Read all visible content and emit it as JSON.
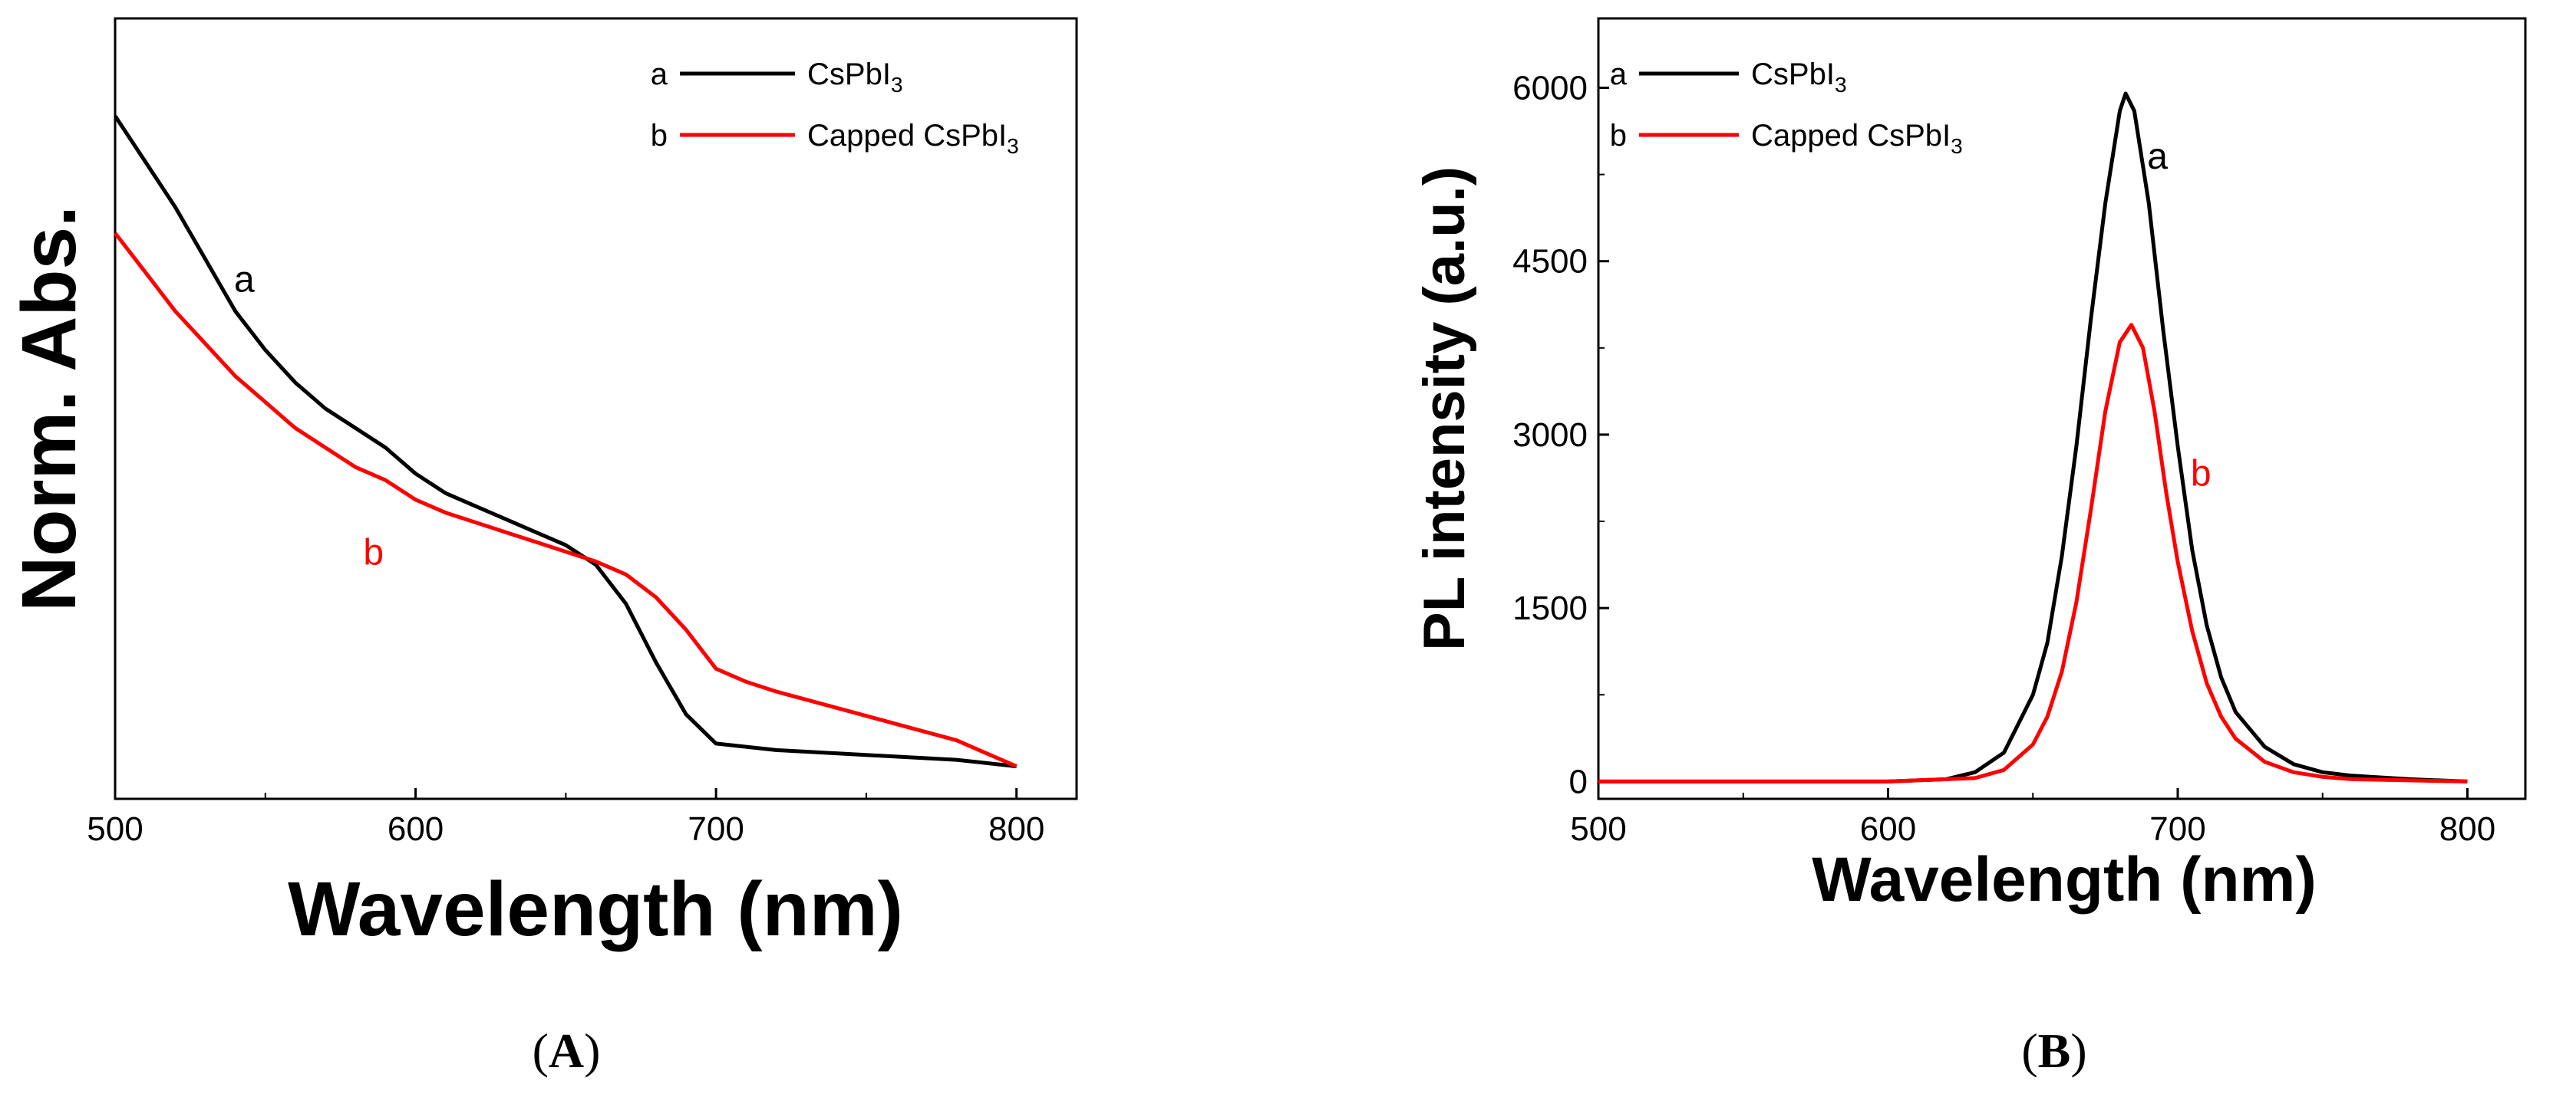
{
  "chart_data": [
    {
      "type": "line",
      "panel": "A",
      "panel_label": "A",
      "xlabel": "Wavelength (nm)",
      "ylabel": "Norm. Abs.",
      "xlim": [
        500,
        820
      ],
      "ylim": [
        -0.05,
        1.15
      ],
      "xticks": [
        500,
        600,
        700,
        800
      ],
      "yticks": [],
      "series": [
        {
          "id": "a",
          "name": "CsPbI3",
          "label": "a",
          "color": "#000000",
          "x": [
            500,
            510,
            520,
            530,
            540,
            550,
            560,
            570,
            580,
            590,
            600,
            610,
            620,
            630,
            640,
            650,
            660,
            670,
            680,
            690,
            700,
            720,
            740,
            760,
            780,
            800
          ],
          "y": [
            1.0,
            0.93,
            0.86,
            0.78,
            0.7,
            0.64,
            0.59,
            0.55,
            0.52,
            0.49,
            0.45,
            0.42,
            0.4,
            0.38,
            0.36,
            0.34,
            0.31,
            0.25,
            0.16,
            0.08,
            0.035,
            0.025,
            0.02,
            0.015,
            0.01,
            0.0
          ]
        },
        {
          "id": "b",
          "name": "Capped CsPbI3",
          "label": "b",
          "color": "#ff0000",
          "x": [
            500,
            510,
            520,
            530,
            540,
            550,
            560,
            570,
            580,
            590,
            600,
            610,
            620,
            630,
            640,
            650,
            660,
            670,
            680,
            690,
            700,
            710,
            720,
            740,
            760,
            780,
            800
          ],
          "y": [
            0.82,
            0.76,
            0.7,
            0.65,
            0.6,
            0.56,
            0.52,
            0.49,
            0.46,
            0.44,
            0.41,
            0.39,
            0.375,
            0.36,
            0.345,
            0.33,
            0.315,
            0.295,
            0.26,
            0.21,
            0.15,
            0.13,
            0.115,
            0.09,
            0.065,
            0.04,
            0.0
          ]
        }
      ],
      "legend": [
        {
          "label": "a",
          "text": "CsPbI",
          "sub": "3",
          "color": "#000000",
          "label_color": "#000000"
        },
        {
          "label": "b",
          "text": "Capped CsPbI",
          "sub": "3",
          "color": "#ff0000",
          "label_color": "#ff0000"
        }
      ],
      "annotations": [
        {
          "text": "a",
          "x": 543,
          "y": 0.73,
          "color": "#000000"
        },
        {
          "text": "b",
          "x": 586,
          "y": 0.31,
          "color": "#ff0000"
        }
      ],
      "legend_position": "top-right"
    },
    {
      "type": "line",
      "panel": "B",
      "panel_label": "B",
      "xlabel": "Wavelength (nm)",
      "ylabel": "PL intensity (a.u.)",
      "xlim": [
        500,
        820
      ],
      "ylim": [
        -150,
        6600
      ],
      "xticks": [
        500,
        600,
        700,
        800
      ],
      "yticks": [
        0,
        1500,
        3000,
        4500,
        6000
      ],
      "series": [
        {
          "id": "a",
          "name": "CsPbI3",
          "label": "a",
          "color": "#000000",
          "peak_x": 682,
          "peak_y": 5950,
          "x": [
            500,
            560,
            600,
            620,
            630,
            640,
            650,
            655,
            660,
            665,
            670,
            675,
            680,
            682,
            685,
            690,
            695,
            700,
            705,
            710,
            715,
            720,
            730,
            740,
            750,
            760,
            780,
            800
          ],
          "y": [
            0,
            0,
            0,
            20,
            80,
            250,
            750,
            1200,
            1950,
            2900,
            4000,
            5000,
            5800,
            5950,
            5800,
            5000,
            3900,
            2900,
            2000,
            1350,
            900,
            600,
            300,
            150,
            80,
            50,
            20,
            0
          ]
        },
        {
          "id": "b",
          "name": "Capped CsPbI3",
          "label": "b",
          "color": "#ff0000",
          "peak_x": 684,
          "peak_y": 3950,
          "x": [
            500,
            560,
            600,
            630,
            640,
            650,
            655,
            660,
            665,
            670,
            675,
            680,
            684,
            688,
            692,
            696,
            700,
            705,
            710,
            715,
            720,
            730,
            740,
            750,
            760,
            780,
            800
          ],
          "y": [
            0,
            0,
            0,
            30,
            100,
            320,
            560,
            950,
            1550,
            2350,
            3200,
            3800,
            3950,
            3750,
            3200,
            2500,
            1900,
            1300,
            850,
            560,
            370,
            170,
            80,
            40,
            20,
            10,
            0
          ]
        }
      ],
      "legend": [
        {
          "label": "a",
          "text": "CsPbI",
          "sub": "3",
          "color": "#000000",
          "label_color": "#000000"
        },
        {
          "label": "b",
          "text": "Capped CsPbI",
          "sub": "3",
          "color": "#ff0000",
          "label_color": "#ff0000"
        }
      ],
      "annotations": [
        {
          "text": "a",
          "x": 693,
          "y": 5300,
          "color": "#000000"
        },
        {
          "text": "b",
          "x": 708,
          "y": 2560,
          "color": "#ff0000"
        }
      ],
      "legend_position": "top-left"
    }
  ]
}
